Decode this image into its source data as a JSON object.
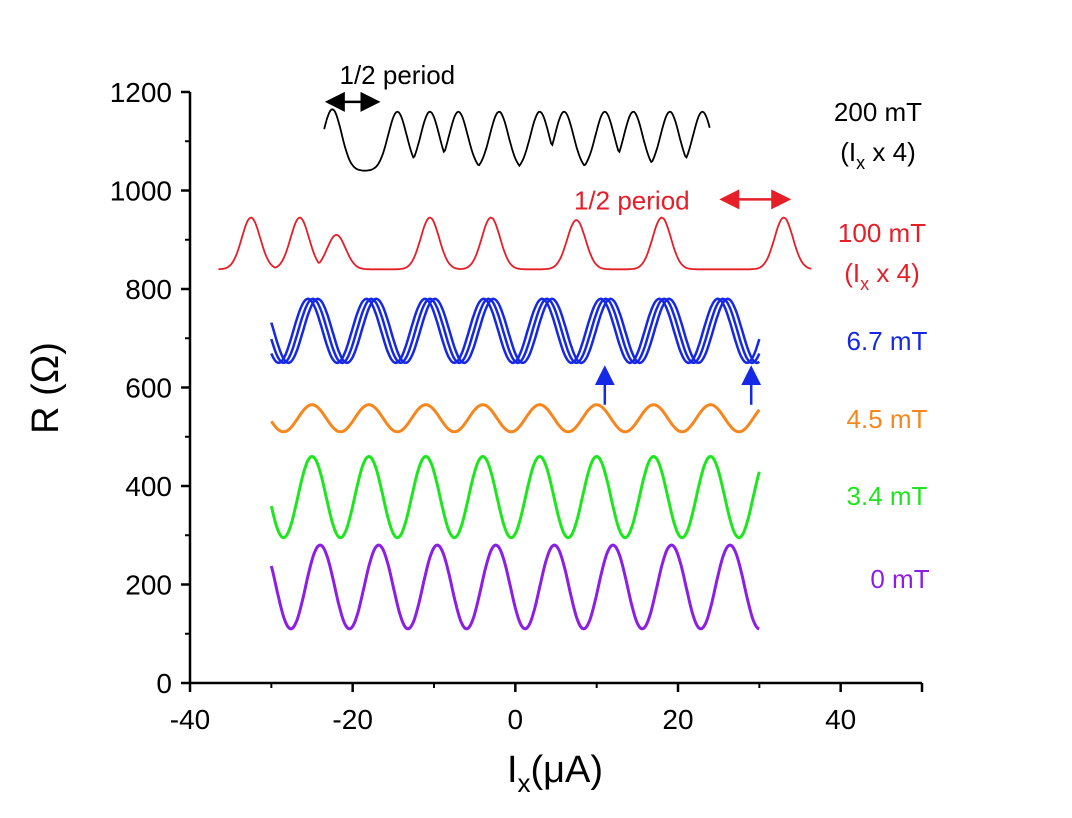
{
  "chart_data": {
    "type": "line",
    "title": "",
    "xlabel": {
      "main": "I",
      "sub": "x",
      "unit": "(μA)"
    },
    "ylabel": "R (Ω)",
    "xlim": [
      -40,
      50
    ],
    "ylim": [
      0,
      1200
    ],
    "xticks": [
      -40,
      -20,
      0,
      20,
      40
    ],
    "yticks": [
      0,
      200,
      400,
      600,
      800,
      1000,
      1200
    ],
    "grid": false,
    "legend": "labels right of each trace",
    "series": [
      {
        "name": "0 mT",
        "color": "#8c1ee6",
        "style": "sine",
        "x_range": [
          -30,
          30
        ],
        "baseline": 110,
        "peak": 280,
        "period": 7.2,
        "first_peak": -24.0
      },
      {
        "name": "3.4 mT",
        "color": "#1ee61e",
        "style": "sine",
        "x_range": [
          -30,
          30
        ],
        "baseline": 295,
        "peak": 460,
        "period": 7.0,
        "first_peak": -25.0
      },
      {
        "name": "4.5 mT",
        "color": "#f5871e",
        "style": "sine",
        "x_range": [
          -30,
          30
        ],
        "baseline": 510,
        "peak": 565,
        "period": 7.0,
        "first_peak": -25.0
      },
      {
        "name": "6.7 mT",
        "color": "#1428e6",
        "style": "multi-sine",
        "x_range": [
          -30,
          30
        ],
        "baseline": 650,
        "peak": 780,
        "period": 7.2,
        "first_peak": -25.5,
        "phase_shifts": [
          0,
          0.6,
          1.2
        ]
      },
      {
        "name": "100 mT",
        "sublabel": {
          "open": "(I",
          "sub": "x",
          "close": " x 4)"
        },
        "color": "#e61e28",
        "style": "peaks",
        "baseline": 840,
        "peaks": [
          [
            -32.5,
            945
          ],
          [
            -26.5,
            945
          ],
          [
            -22,
            910
          ],
          [
            -10.5,
            945
          ],
          [
            -3,
            945
          ],
          [
            7.5,
            940
          ],
          [
            18,
            945
          ],
          [
            33,
            945
          ]
        ],
        "x_range": [
          -36.5,
          36.5
        ]
      },
      {
        "name": "200 mT",
        "sublabel": {
          "open": "(I",
          "sub": "x",
          "close": " x 4)"
        },
        "color": "#000000",
        "style": "peaks",
        "baseline": 1040,
        "peaks": [
          [
            -22.5,
            1165
          ],
          [
            -14.5,
            1160
          ],
          [
            -10.5,
            1160
          ],
          [
            -7,
            1160
          ],
          [
            -2,
            1160
          ],
          [
            3,
            1160
          ],
          [
            6,
            1160
          ],
          [
            11,
            1160
          ],
          [
            14.5,
            1160
          ],
          [
            19,
            1160
          ],
          [
            23,
            1160
          ]
        ],
        "x_range": [
          -23.5,
          24
        ]
      }
    ],
    "annotations": [
      {
        "text": "1/2 period",
        "color": "#000000",
        "arrow_x": [
          -22.5,
          -17.5
        ],
        "arrow_y": 1180
      },
      {
        "text": "1/2 period",
        "color": "#e61e28",
        "arrow_x": [
          26,
          33
        ],
        "arrow_y": 982
      },
      {
        "text": "",
        "color": "#1428e6",
        "type": "up-arrow",
        "x": 11,
        "y": [
          565,
          630
        ]
      },
      {
        "text": "",
        "color": "#1428e6",
        "type": "up-arrow",
        "x": 29,
        "y": [
          565,
          630
        ]
      }
    ]
  }
}
